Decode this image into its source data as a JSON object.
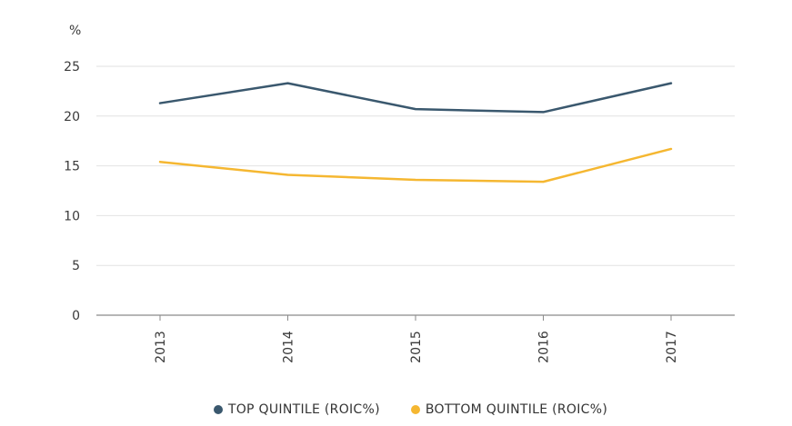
{
  "chart_data": {
    "type": "line",
    "title": "",
    "xlabel": "",
    "ylabel": "%",
    "ylim": [
      0,
      25
    ],
    "yticks": [
      0,
      5,
      10,
      15,
      20,
      25
    ],
    "categories": [
      "2013",
      "2014",
      "2015",
      "2016",
      "2017"
    ],
    "grid": true,
    "legend_position": "bottom-center",
    "series": [
      {
        "name": "TOP QUINTILE (ROIC%)",
        "color": "#3a586e",
        "values": [
          21.3,
          23.3,
          20.7,
          20.4,
          23.3
        ]
      },
      {
        "name": "BOTTOM QUINTILE (ROIC%)",
        "color": "#f5b731",
        "values": [
          15.4,
          14.1,
          13.6,
          13.4,
          16.7
        ]
      }
    ]
  }
}
